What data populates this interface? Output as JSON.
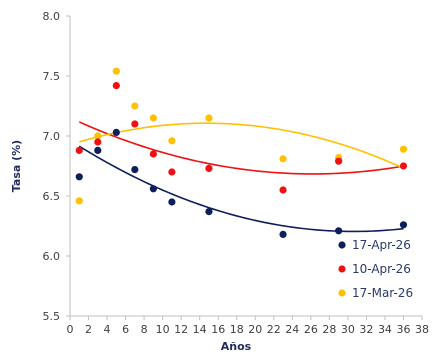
{
  "chart_data": {
    "type": "scatter",
    "xlabel": "Años",
    "ylabel": "Tasa (%)",
    "xlim": [
      0,
      38
    ],
    "ylim": [
      5.5,
      8.0
    ],
    "xticks": [
      0,
      2,
      4,
      6,
      8,
      10,
      12,
      14,
      16,
      18,
      20,
      22,
      24,
      26,
      28,
      30,
      32,
      34,
      36,
      38
    ],
    "yticks": [
      "5.5",
      "6.0",
      "6.5",
      "7.0",
      "7.5",
      "8.0"
    ],
    "grid": false,
    "trendline": "polynomial",
    "legend_position": "bottom-right",
    "series": [
      {
        "name": "17-Apr-26",
        "color": "#0c1f5c",
        "points": [
          [
            1,
            6.66
          ],
          [
            3,
            6.88
          ],
          [
            5,
            7.03
          ],
          [
            7,
            6.72
          ],
          [
            9,
            6.56
          ],
          [
            11,
            6.45
          ],
          [
            15,
            6.37
          ],
          [
            23,
            6.18
          ],
          [
            29,
            6.21
          ],
          [
            36,
            6.26
          ]
        ]
      },
      {
        "name": "10-Apr-26",
        "color": "#ee1111",
        "points": [
          [
            1,
            6.88
          ],
          [
            3,
            6.95
          ],
          [
            5,
            7.42
          ],
          [
            7,
            7.1
          ],
          [
            9,
            6.85
          ],
          [
            11,
            6.7
          ],
          [
            15,
            6.73
          ],
          [
            23,
            6.55
          ],
          [
            29,
            6.79
          ],
          [
            36,
            6.75
          ]
        ]
      },
      {
        "name": "17-Mar-26",
        "color": "#ffc000",
        "points": [
          [
            1,
            6.46
          ],
          [
            3,
            7.0
          ],
          [
            5,
            7.54
          ],
          [
            7,
            7.25
          ],
          [
            9,
            7.15
          ],
          [
            11,
            6.96
          ],
          [
            15,
            7.15
          ],
          [
            23,
            6.81
          ],
          [
            29,
            6.82
          ],
          [
            36,
            6.89
          ]
        ]
      }
    ]
  }
}
